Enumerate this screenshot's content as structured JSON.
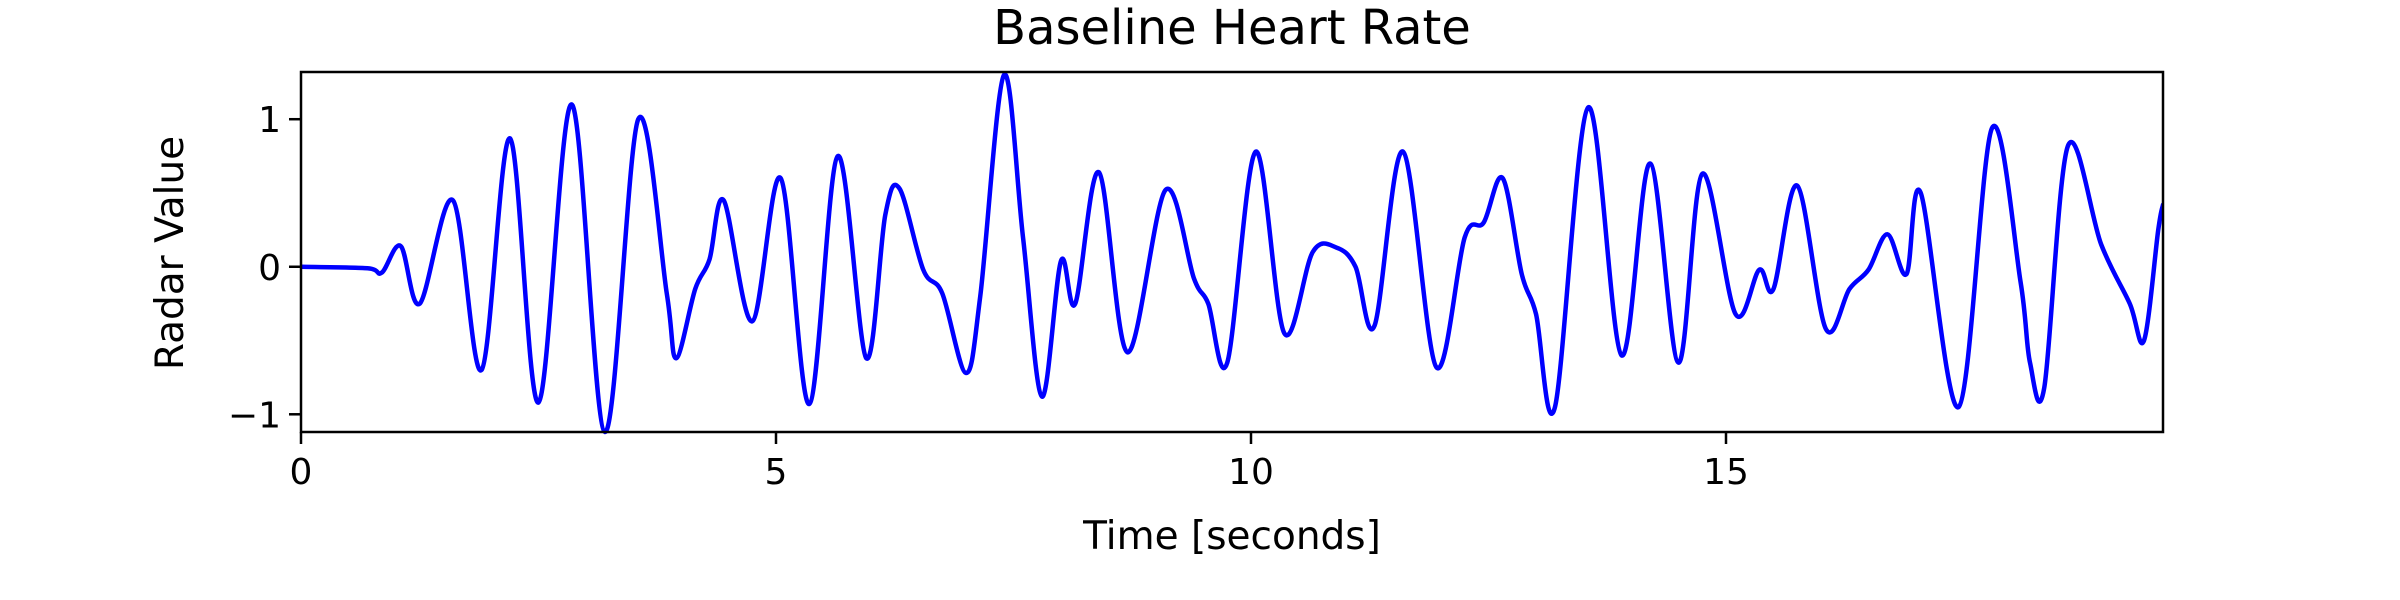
{
  "chart_data": {
    "type": "line",
    "title": "Baseline Heart Rate",
    "xlabel": "Time [seconds]",
    "ylabel": "Radar Value",
    "xlim": [
      0,
      19.6
    ],
    "ylim": [
      -1.12,
      1.32
    ],
    "x_ticks": [
      0,
      5,
      10,
      15
    ],
    "x_tick_labels": [
      "0",
      "5",
      "10",
      "15"
    ],
    "y_ticks": [
      -1,
      0,
      1
    ],
    "y_tick_labels": [
      "−1",
      "0",
      "1"
    ],
    "grid": false,
    "legend": false,
    "series": [
      {
        "color": "#0000ff",
        "points": [
          [
            0.0,
            0.0
          ],
          [
            0.7,
            -0.01
          ],
          [
            0.85,
            -0.04
          ],
          [
            1.05,
            0.14
          ],
          [
            1.25,
            -0.25
          ],
          [
            1.6,
            0.45
          ],
          [
            1.9,
            -0.7
          ],
          [
            2.2,
            0.87
          ],
          [
            2.5,
            -0.92
          ],
          [
            2.85,
            1.1
          ],
          [
            3.2,
            -1.12
          ],
          [
            3.55,
            1.0
          ],
          [
            3.85,
            -0.18
          ],
          [
            3.95,
            -0.62
          ],
          [
            4.15,
            -0.15
          ],
          [
            4.3,
            0.05
          ],
          [
            4.45,
            0.45
          ],
          [
            4.75,
            -0.37
          ],
          [
            5.05,
            0.6
          ],
          [
            5.35,
            -0.93
          ],
          [
            5.65,
            0.75
          ],
          [
            5.95,
            -0.62
          ],
          [
            6.15,
            0.35
          ],
          [
            6.3,
            0.53
          ],
          [
            6.55,
            -0.02
          ],
          [
            6.75,
            -0.18
          ],
          [
            7.0,
            -0.72
          ],
          [
            7.15,
            -0.2
          ],
          [
            7.4,
            1.3
          ],
          [
            7.6,
            0.2
          ],
          [
            7.8,
            -0.88
          ],
          [
            8.0,
            0.04
          ],
          [
            8.15,
            -0.25
          ],
          [
            8.4,
            0.64
          ],
          [
            8.7,
            -0.58
          ],
          [
            9.1,
            0.52
          ],
          [
            9.4,
            -0.08
          ],
          [
            9.55,
            -0.25
          ],
          [
            9.75,
            -0.65
          ],
          [
            10.05,
            0.78
          ],
          [
            10.35,
            -0.45
          ],
          [
            10.65,
            0.1
          ],
          [
            10.9,
            0.13
          ],
          [
            11.1,
            0.0
          ],
          [
            11.3,
            -0.4
          ],
          [
            11.6,
            0.78
          ],
          [
            11.95,
            -0.68
          ],
          [
            12.25,
            0.2
          ],
          [
            12.45,
            0.3
          ],
          [
            12.65,
            0.6
          ],
          [
            12.85,
            -0.05
          ],
          [
            13.0,
            -0.32
          ],
          [
            13.2,
            -0.95
          ],
          [
            13.55,
            1.08
          ],
          [
            13.9,
            -0.6
          ],
          [
            14.2,
            0.7
          ],
          [
            14.5,
            -0.65
          ],
          [
            14.75,
            0.63
          ],
          [
            15.1,
            -0.32
          ],
          [
            15.35,
            -0.02
          ],
          [
            15.5,
            -0.15
          ],
          [
            15.75,
            0.55
          ],
          [
            16.05,
            -0.42
          ],
          [
            16.3,
            -0.15
          ],
          [
            16.5,
            -0.02
          ],
          [
            16.7,
            0.22
          ],
          [
            16.9,
            -0.05
          ],
          [
            17.05,
            0.5
          ],
          [
            17.45,
            -0.95
          ],
          [
            17.8,
            0.94
          ],
          [
            18.1,
            -0.1
          ],
          [
            18.2,
            -0.65
          ],
          [
            18.35,
            -0.82
          ],
          [
            18.6,
            0.82
          ],
          [
            18.95,
            0.15
          ],
          [
            19.25,
            -0.25
          ],
          [
            19.4,
            -0.5
          ],
          [
            19.55,
            0.25
          ],
          [
            19.6,
            0.42
          ]
        ]
      }
    ]
  }
}
